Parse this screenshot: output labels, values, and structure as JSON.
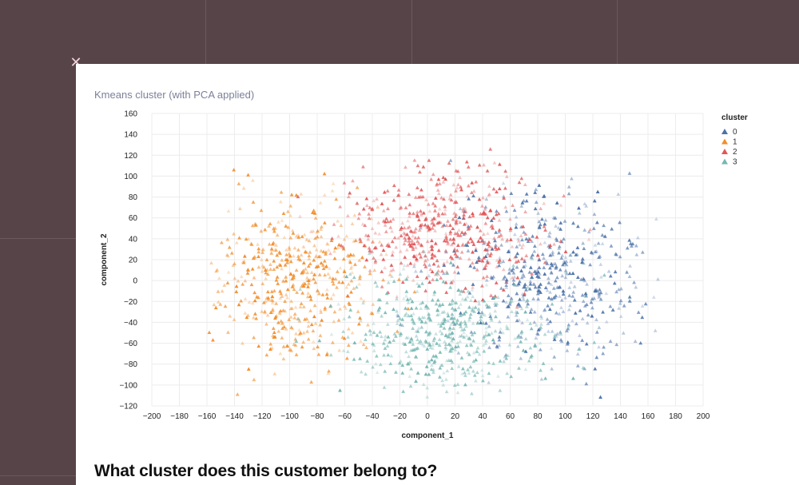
{
  "close_icon": "close-icon",
  "question": "What cluster does this customer belong to?",
  "colors": {
    "background": "#574449",
    "card": "#ffffff",
    "title": "#7b8199"
  },
  "chart_data": {
    "type": "scatter",
    "title": "Kmeans cluster (with PCA applied)",
    "xlabel": "component_1",
    "ylabel": "component_2",
    "xlim": [
      -200,
      200
    ],
    "ylim": [
      -120,
      160
    ],
    "x_ticks": [
      "−200",
      "−180",
      "−160",
      "−140",
      "−120",
      "−100",
      "−80",
      "−60",
      "−40",
      "−20",
      "0",
      "20",
      "40",
      "60",
      "80",
      "100",
      "120",
      "140",
      "160",
      "180",
      "200"
    ],
    "y_ticks": [
      "160",
      "140",
      "120",
      "100",
      "80",
      "60",
      "40",
      "20",
      "0",
      "−20",
      "−40",
      "−60",
      "−80",
      "−100",
      "−120"
    ],
    "grid": true,
    "marker": "triangle",
    "legend": {
      "title": "cluster",
      "placement": "top-right"
    },
    "series": [
      {
        "name": "0",
        "color": "#4c72a8",
        "center": [
          85,
          0
        ],
        "spread": [
          35,
          40
        ],
        "count": 520
      },
      {
        "name": "1",
        "color": "#f28e2b",
        "center": [
          -95,
          0
        ],
        "spread": [
          30,
          38
        ],
        "count": 520
      },
      {
        "name": "2",
        "color": "#e15759",
        "center": [
          10,
          45
        ],
        "spread": [
          38,
          30
        ],
        "count": 520
      },
      {
        "name": "3",
        "color": "#76b7b2",
        "center": [
          15,
          -50
        ],
        "spread": [
          38,
          28
        ],
        "count": 520
      }
    ]
  }
}
